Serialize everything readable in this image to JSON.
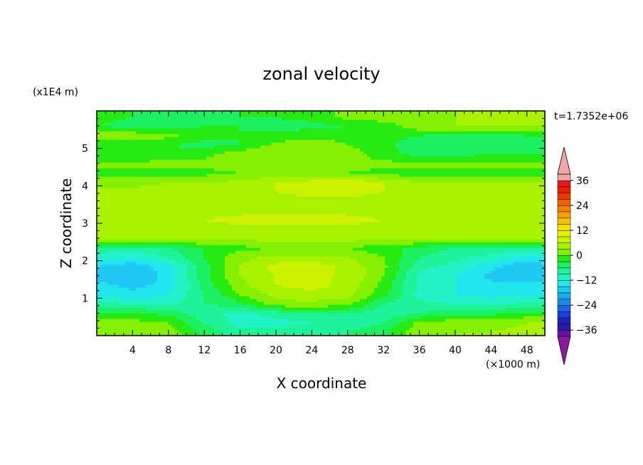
{
  "chart_data": {
    "type": "heatmap",
    "subtype": "filled-contour",
    "title": "zonal velocity",
    "xlabel": "X coordinate",
    "ylabel": "Z coordinate",
    "x_unit": "(×1000 m)",
    "y_unit": "(x1E4 m)",
    "time_label": "t=1.7352e+06",
    "xlim": [
      0,
      50
    ],
    "ylim": [
      0,
      6
    ],
    "x_ticks": [
      "4",
      "8",
      "12",
      "16",
      "20",
      "24",
      "28",
      "32",
      "36",
      "40",
      "44",
      "48"
    ],
    "y_ticks": [
      "1",
      "2",
      "3",
      "4",
      "5"
    ],
    "colorbar": {
      "levels": [
        -39,
        -36,
        -33,
        -30,
        -27,
        -24,
        -21,
        -18,
        -15,
        -12,
        -9,
        -6,
        -3,
        0,
        3,
        6,
        9,
        12,
        15,
        18,
        21,
        24,
        27,
        30,
        33,
        36,
        39
      ],
      "labels": [
        "36",
        "24",
        "12",
        "0",
        "−12",
        "−24",
        "−36"
      ],
      "colors": [
        "#6a0dad",
        "#2a1a9e",
        "#1d25b8",
        "#1a3fe0",
        "#1e64e8",
        "#1e88e8",
        "#1eaaf0",
        "#1fc8f2",
        "#22e6ee",
        "#22f2c8",
        "#1ef29a",
        "#1cf060",
        "#26ea12",
        "#84f000",
        "#a8f200",
        "#ccf200",
        "#e6f200",
        "#f4e000",
        "#f8c000",
        "#f8a000",
        "#f58000",
        "#f26000",
        "#ee3c00",
        "#e82000",
        "#e81818",
        "#f0a6a6"
      ],
      "under_color": "#8a1aa0",
      "over_color": "#f0a6a6"
    },
    "field": {
      "z_rows": [
        0.1,
        0.35,
        0.6,
        0.85,
        1.1,
        1.35,
        1.6,
        1.85,
        2.1,
        2.35,
        2.6,
        2.85,
        3.1,
        3.35,
        3.6,
        3.85,
        4.1,
        4.35,
        4.6,
        4.85,
        5.1,
        5.35,
        5.6,
        5.85
      ],
      "x_cols": [
        0,
        4,
        8,
        12,
        16,
        20,
        24,
        28,
        32,
        36,
        40,
        44,
        48,
        50
      ],
      "u": [
        [
          2,
          3,
          2,
          -4,
          -8,
          -8,
          -7,
          -6,
          -4,
          2,
          3,
          3,
          4,
          4
        ],
        [
          1,
          1,
          0,
          -6,
          -10,
          -10,
          -9,
          -8,
          -6,
          1,
          2,
          2,
          3,
          3
        ],
        [
          -2,
          -2,
          -4,
          -8,
          -10,
          -8,
          -6,
          -6,
          -8,
          -6,
          -4,
          -4,
          -2,
          -2
        ],
        [
          -8,
          -9,
          -10,
          -6,
          -4,
          2,
          2,
          1,
          -6,
          -8,
          -9,
          -10,
          -8,
          -8
        ],
        [
          -12,
          -14,
          -12,
          -6,
          0,
          4,
          5,
          4,
          -2,
          -10,
          -12,
          -13,
          -12,
          -12
        ],
        [
          -14,
          -16,
          -14,
          -5,
          2,
          6,
          7,
          5,
          -1,
          -10,
          -12,
          -14,
          -14,
          -14
        ],
        [
          -16,
          -18,
          -14,
          -4,
          3,
          6,
          6,
          6,
          0,
          -10,
          -12,
          -16,
          -18,
          -16
        ],
        [
          -15,
          -17,
          -13,
          -4,
          3,
          7,
          8,
          5,
          1,
          -8,
          -10,
          -14,
          -18,
          -16
        ],
        [
          -11,
          -12,
          -9,
          -3,
          2,
          4,
          4,
          3,
          0,
          -6,
          -8,
          -10,
          -13,
          -12
        ],
        [
          -7,
          -8,
          -6,
          -3,
          -1,
          0,
          0,
          0,
          -2,
          -4,
          -6,
          -7,
          -8,
          -7
        ],
        [
          4,
          4,
          4,
          4,
          4,
          4,
          4,
          4,
          4,
          4,
          4,
          4,
          4,
          4
        ],
        [
          5,
          5,
          5,
          5,
          5,
          5,
          5,
          5,
          5,
          5,
          5,
          5,
          5,
          5
        ],
        [
          5,
          5,
          5,
          6,
          7,
          8,
          8,
          7,
          6,
          5,
          5,
          5,
          5,
          5
        ],
        [
          5,
          5,
          5,
          5,
          5,
          5,
          5,
          5,
          5,
          5,
          5,
          5,
          5,
          5
        ],
        [
          5,
          5,
          5,
          5,
          5,
          5,
          5,
          5,
          5,
          5,
          5,
          5,
          5,
          5
        ],
        [
          4,
          4,
          4,
          4,
          5,
          6,
          7,
          7,
          6,
          4,
          4,
          5,
          5,
          5
        ],
        [
          2,
          2,
          3,
          3,
          4,
          6,
          7,
          8,
          6,
          3,
          3,
          3,
          3,
          3
        ],
        [
          -2,
          -2,
          -2,
          -1,
          0,
          1,
          1,
          0,
          -1,
          -2,
          -2,
          -2,
          -2,
          -2
        ],
        [
          1,
          1,
          1,
          1,
          2,
          2,
          1,
          1,
          1,
          1,
          1,
          1,
          1,
          1
        ],
        [
          -3,
          -3,
          -2,
          -1,
          2,
          3,
          3,
          2,
          -2,
          -4,
          -4,
          -3,
          -3,
          -3
        ],
        [
          -2,
          -2,
          -3,
          -4,
          -3,
          1,
          2,
          0,
          -2,
          -5,
          -6,
          -6,
          -5,
          -5
        ],
        [
          2,
          2,
          1,
          -2,
          -3,
          -2,
          -1,
          -1,
          -2,
          -3,
          -4,
          -4,
          -3,
          -3
        ],
        [
          -3,
          -4,
          -4,
          -3,
          -3,
          -4,
          -4,
          -3,
          -2,
          2,
          3,
          3,
          3,
          3
        ],
        [
          -2,
          -3,
          -5,
          -4,
          -3,
          -3,
          -2,
          1,
          2,
          2,
          3,
          3,
          3,
          3
        ]
      ]
    }
  }
}
